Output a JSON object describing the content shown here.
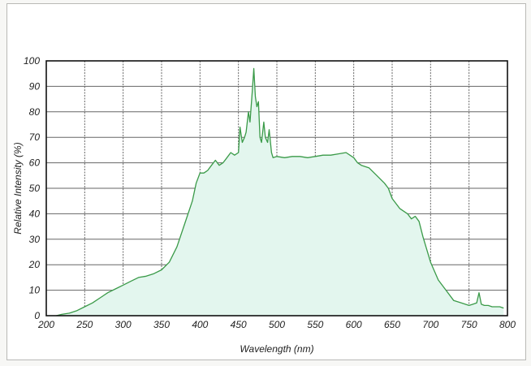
{
  "colors": {
    "line": "#3a9a48",
    "fill": "#e3f6ee",
    "grid": "#666666",
    "frame": "#111111"
  },
  "chart_data": {
    "type": "area",
    "title": "",
    "xlabel": "Wavelength (nm)",
    "ylabel": "Relative Intensity (%)",
    "xlim": [
      200,
      800
    ],
    "ylim": [
      0,
      100
    ],
    "x_ticks": [
      200,
      250,
      300,
      350,
      400,
      450,
      500,
      550,
      600,
      650,
      700,
      750,
      800
    ],
    "y_ticks": [
      0,
      10,
      20,
      30,
      40,
      50,
      60,
      70,
      80,
      90,
      100
    ],
    "grid": true,
    "legend": "none",
    "series": [
      {
        "x": [
          213,
          220,
          230,
          240,
          250,
          260,
          270,
          280,
          290,
          300,
          310,
          320,
          330,
          340,
          350,
          360,
          370,
          380,
          390,
          395,
          400,
          405,
          410,
          415,
          420,
          425,
          430,
          435,
          440,
          445,
          450,
          452,
          455,
          458,
          460,
          463,
          465,
          468,
          470,
          472,
          474,
          476,
          478,
          480,
          483,
          485,
          488,
          490,
          493,
          495,
          500,
          510,
          520,
          530,
          540,
          550,
          560,
          570,
          580,
          590,
          600,
          605,
          610,
          620,
          630,
          640,
          645,
          650,
          660,
          670,
          675,
          680,
          685,
          690,
          700,
          710,
          720,
          730,
          740,
          750,
          755,
          760,
          763,
          766,
          770,
          775,
          780,
          790,
          795
        ],
        "y": [
          0,
          0.5,
          1,
          2,
          3.5,
          5,
          7,
          9,
          10.5,
          12,
          13.5,
          15,
          15.5,
          16.5,
          18,
          21,
          27,
          36,
          45,
          52,
          56,
          56,
          57,
          59,
          61,
          59,
          60,
          62,
          64,
          63,
          64,
          74,
          68,
          70,
          72,
          80,
          76,
          88,
          97,
          86,
          82,
          84,
          70,
          68,
          76,
          70,
          68,
          73,
          64,
          62,
          62.5,
          62,
          62.5,
          62.5,
          62,
          62.5,
          63,
          63,
          63.5,
          64,
          62,
          60,
          59,
          58,
          55,
          52,
          50,
          46,
          42,
          40,
          38,
          39,
          37,
          31,
          21,
          14,
          10,
          6,
          5,
          4,
          4.5,
          5,
          9,
          4.5,
          4,
          4,
          3.5,
          3.5,
          3
        ]
      }
    ]
  }
}
